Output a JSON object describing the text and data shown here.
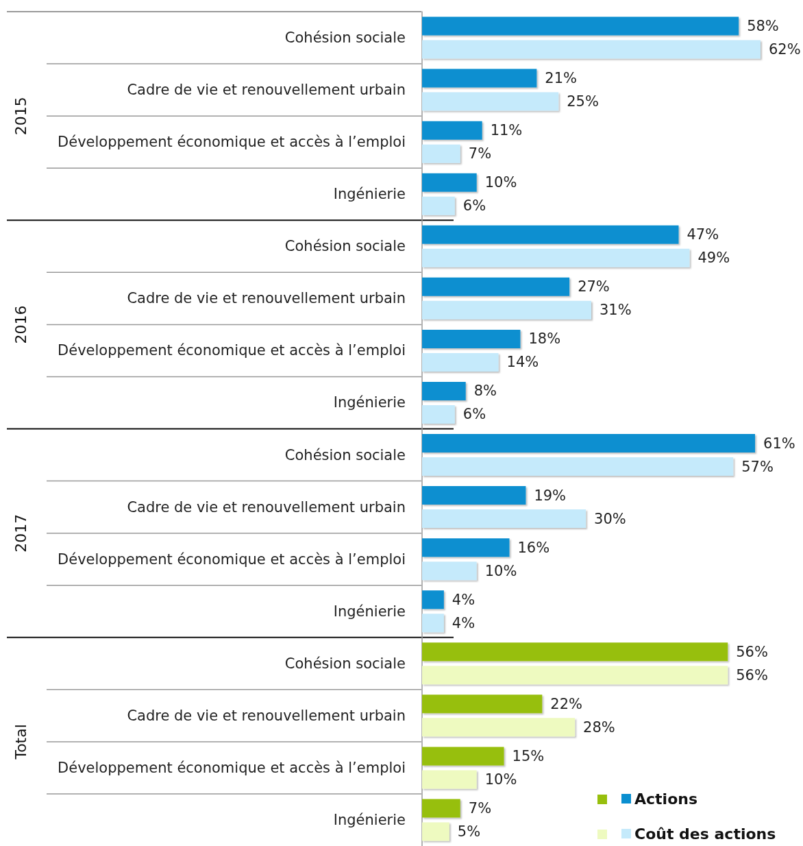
{
  "chart_data": {
    "type": "bar",
    "orientation": "horizontal",
    "annotations": [
      "2015",
      "2016",
      "2017",
      "Total"
    ],
    "categories": [
      "Cohésion sociale",
      "Cadre de vie et renouvellement urbain",
      "Développement économique et accès à l’emploi",
      "Ingénierie",
      "Cohésion sociale",
      "Cadre de vie et renouvellement urbain",
      "Développement économique et accès à l’emploi",
      "Ingénierie",
      "Cohésion sociale",
      "Cadre de vie et renouvellement urbain",
      "Développement économique et accès à l’emploi",
      "Ingénierie",
      "Cohésion sociale",
      "Cadre de vie et renouvellement urbain",
      "Développement économique et accès à l’emploi",
      "Ingénierie"
    ],
    "legend": "bottom right",
    "series": [
      {
        "name": "Actions",
        "colors": [
          "#0a8fd0",
          "#0a8fd0",
          "#0a8fd0",
          "#0a8fd0",
          "#0a8fd0",
          "#0a8fd0",
          "#0a8fd0",
          "#0a8fd0",
          "#0a8fd0",
          "#0a8fd0",
          "#0a8fd0",
          "#0a8fd0",
          "#97bf0d",
          "#97bf0d",
          "#97bf0d",
          "#97bf0d"
        ],
        "values": [
          58,
          21,
          11,
          10,
          47,
          27,
          18,
          8,
          61,
          19,
          16,
          4,
          56,
          22,
          15,
          7
        ],
        "value_labels": [
          "58%",
          "21%",
          "11%",
          "10%",
          "47%",
          "27%",
          "18%",
          "8%",
          "61%",
          "19%",
          "16%",
          "4%",
          "56%",
          "22%",
          "15%",
          "7%"
        ]
      },
      {
        "name": "Coût des actions",
        "colors": [
          "#c5eafb",
          "#c5eafb",
          "#c5eafb",
          "#c5eafb",
          "#c5eafb",
          "#c5eafb",
          "#c5eafb",
          "#c5eafb",
          "#c5eafb",
          "#c5eafb",
          "#c5eafb",
          "#c5eafb",
          "#eefac0",
          "#eefac0",
          "#eefac0",
          "#eefac0"
        ],
        "values": [
          62,
          25,
          7,
          6,
          49,
          31,
          14,
          6,
          57,
          30,
          10,
          4,
          56,
          28,
          10,
          5
        ],
        "value_labels": [
          "62%",
          "25%",
          "7%",
          "6%",
          "49%",
          "31%",
          "14%",
          "6%",
          "57%",
          "30%",
          "10%",
          "4%",
          "56%",
          "28%",
          "10%",
          "5%"
        ]
      }
    ]
  }
}
